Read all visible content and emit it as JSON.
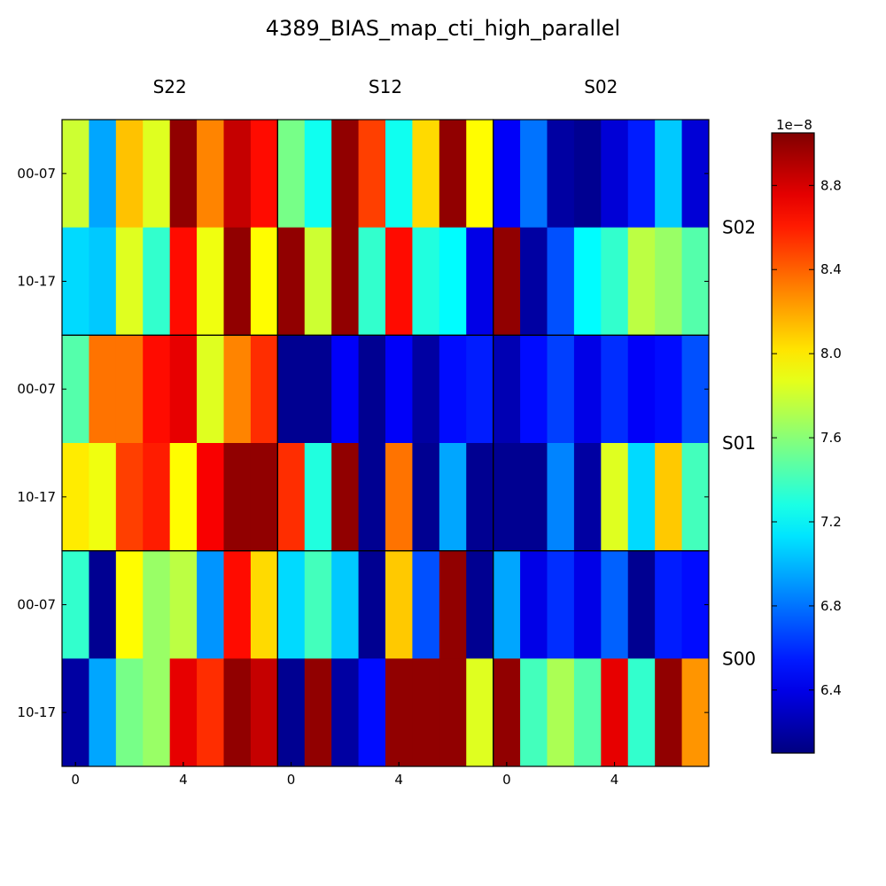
{
  "chart_data": {
    "type": "heatmap",
    "title": "4389_BIAS_map_cti_high_parallel",
    "column_labels": [
      "S22",
      "S12",
      "S02"
    ],
    "row_labels": [
      "S02",
      "S01",
      "S00"
    ],
    "amp_labels": [
      "00-07",
      "10-17"
    ],
    "x_ticks": [
      "0",
      "4"
    ],
    "colormap": "jet",
    "vmin": 6.1e-08,
    "vmax": 9.05e-08,
    "colorbar": {
      "offset_label": "1e−8",
      "ticks": [
        6.4,
        6.8,
        7.2,
        7.6,
        8.0,
        8.4,
        8.8
      ]
    },
    "grid": false,
    "panels": [
      [
        {
          "row": "S02",
          "column": "S22",
          "values": [
            [
              7.8,
              6.95,
              8.12,
              7.85,
              9.0,
              8.3,
              8.85,
              8.65
            ],
            [
              7.1,
              7.05,
              7.85,
              7.35,
              8.65,
              7.9,
              9.0,
              7.95
            ]
          ]
        },
        {
          "row": "S02",
          "column": "S12",
          "values": [
            [
              7.55,
              7.25,
              9.0,
              8.5,
              7.25,
              8.05,
              9.0,
              7.95
            ],
            [
              9.0,
              7.8,
              9.0,
              7.35,
              8.65,
              7.3,
              7.2,
              6.4
            ]
          ]
        },
        {
          "row": "S02",
          "column": "S02",
          "values": [
            [
              6.45,
              6.8,
              6.2,
              6.15,
              6.35,
              6.55,
              7.05,
              6.35
            ],
            [
              9.0,
              6.2,
              6.7,
              7.2,
              7.35,
              7.75,
              7.65,
              7.45
            ]
          ]
        }
      ],
      [
        {
          "row": "S01",
          "column": "S22",
          "values": [
            [
              7.45,
              8.35,
              8.35,
              8.65,
              8.75,
              7.85,
              8.3,
              8.55
            ],
            [
              8.0,
              7.9,
              8.5,
              8.6,
              7.95,
              8.7,
              9.0,
              9.0
            ]
          ]
        },
        {
          "row": "S01",
          "column": "S12",
          "values": [
            [
              6.15,
              6.15,
              6.45,
              6.15,
              6.45,
              6.2,
              6.5,
              6.55
            ],
            [
              8.55,
              7.3,
              9.0,
              6.15,
              8.35,
              6.15,
              6.95,
              6.15
            ]
          ]
        },
        {
          "row": "S01",
          "column": "S02",
          "values": [
            [
              6.25,
              6.5,
              6.65,
              6.4,
              6.6,
              6.45,
              6.5,
              6.7
            ],
            [
              6.15,
              6.15,
              6.85,
              6.2,
              7.85,
              7.1,
              8.1,
              7.4
            ]
          ]
        }
      ],
      [
        {
          "row": "S00",
          "column": "S22",
          "values": [
            [
              7.35,
              6.15,
              7.95,
              7.65,
              7.75,
              6.9,
              8.65,
              8.05
            ],
            [
              6.2,
              6.95,
              7.55,
              7.65,
              8.75,
              8.55,
              9.0,
              8.85
            ]
          ]
        },
        {
          "row": "S00",
          "column": "S12",
          "values": [
            [
              7.1,
              7.4,
              7.05,
              6.15,
              8.1,
              6.7,
              9.0,
              6.15
            ],
            [
              6.15,
              9.0,
              6.2,
              6.5,
              9.0,
              9.0,
              9.0,
              7.85
            ]
          ]
        },
        {
          "row": "S00",
          "column": "S02",
          "values": [
            [
              6.95,
              6.4,
              6.6,
              6.4,
              6.75,
              6.15,
              6.55,
              6.5
            ],
            [
              9.0,
              7.4,
              7.7,
              7.45,
              8.75,
              7.35,
              9.0,
              8.25
            ]
          ]
        }
      ]
    ]
  }
}
